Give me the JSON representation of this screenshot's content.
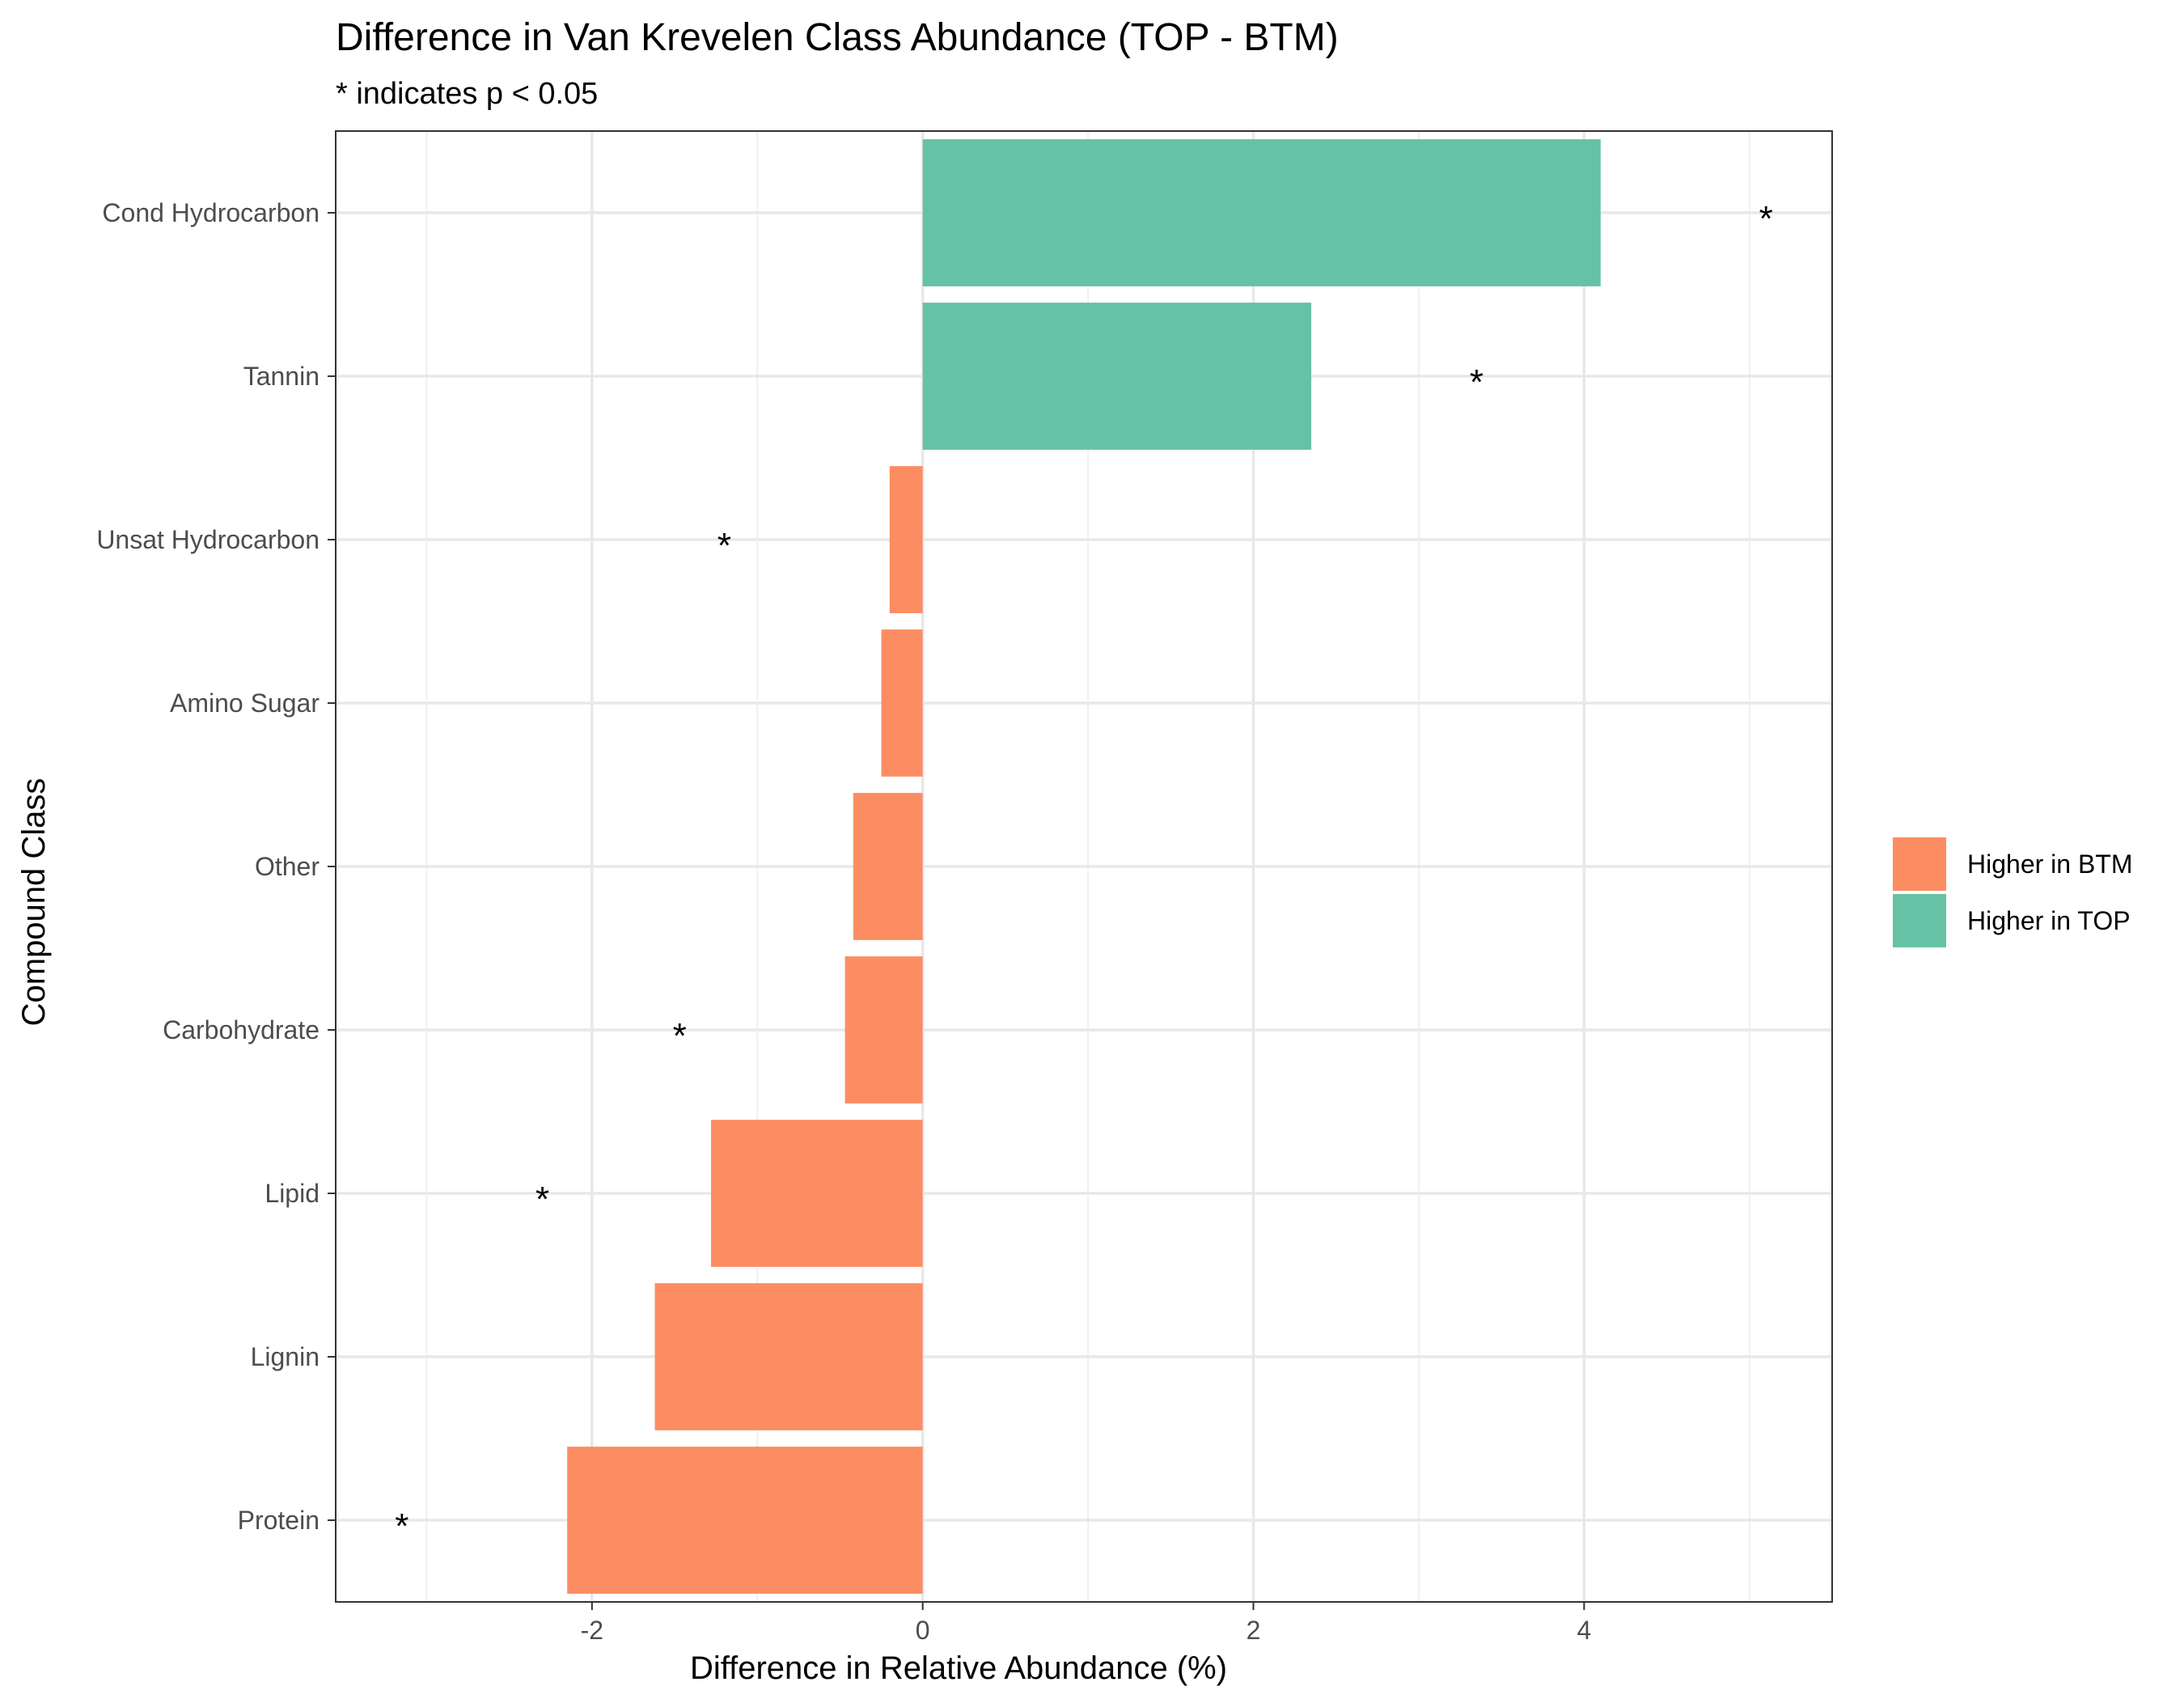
{
  "chart_data": {
    "type": "bar",
    "orientation": "horizontal",
    "title": "Difference in Van Krevelen Class Abundance (TOP - BTM)",
    "subtitle": "* indicates p < 0.05",
    "xlabel": "Difference in Relative Abundance (%)",
    "ylabel": "Compound Class",
    "xlim": [
      -3.55,
      5.5
    ],
    "xticks": [
      -2,
      0,
      2,
      4
    ],
    "xtick_labels": [
      "-2",
      "0",
      "2",
      "4"
    ],
    "grid": true,
    "legend_position": "right",
    "legend": [
      {
        "label": "Higher in BTM",
        "color": "#FC8D62"
      },
      {
        "label": "Higher in TOP",
        "color": "#66C2A5"
      }
    ],
    "significance_marker": "*",
    "categories": [
      "Cond Hydrocarbon",
      "Tannin",
      "Unsat Hydrocarbon",
      "Amino Sugar",
      "Other",
      "Carbohydrate",
      "Lipid",
      "Lignin",
      "Protein"
    ],
    "values": [
      4.1,
      2.35,
      -0.2,
      -0.25,
      -0.42,
      -0.47,
      -1.28,
      -1.62,
      -2.15
    ],
    "groups": [
      "Higher in TOP",
      "Higher in TOP",
      "Higher in BTM",
      "Higher in BTM",
      "Higher in BTM",
      "Higher in BTM",
      "Higher in BTM",
      "Higher in BTM",
      "Higher in BTM"
    ],
    "significant": [
      true,
      true,
      true,
      false,
      false,
      true,
      true,
      false,
      true
    ],
    "star_positions": [
      5.1,
      3.35,
      -1.2,
      null,
      null,
      -1.47,
      -2.3,
      null,
      -3.15
    ]
  }
}
